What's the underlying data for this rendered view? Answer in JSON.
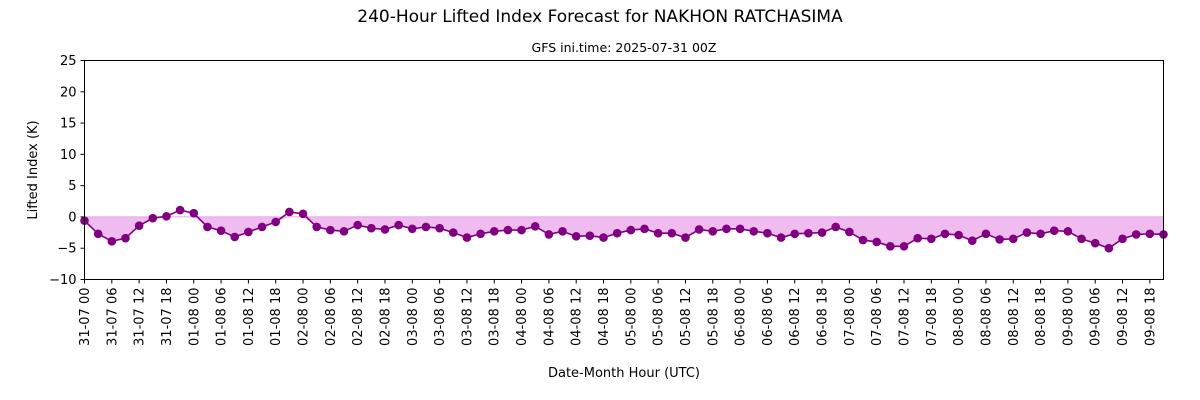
{
  "chart_data": {
    "type": "line",
    "title": "240-Hour Lifted Index Forecast for NAKHON RATCHASIMA",
    "subtitle": "GFS ini.time: 2025-07-31 00Z",
    "xlabel": "Date-Month Hour (UTC)",
    "ylabel": "Lifted Index (K)",
    "ylim": [
      -10,
      25
    ],
    "yticks": [
      -10,
      -5,
      0,
      5,
      10,
      15,
      20,
      25
    ],
    "grid": false,
    "legend": "none",
    "step_hours": 3,
    "x_tick_labels": [
      "31-07 00",
      "31-07 06",
      "31-07 12",
      "31-07 18",
      "01-08 00",
      "01-08 06",
      "01-08 12",
      "01-08 18",
      "02-08 00",
      "02-08 06",
      "02-08 12",
      "02-08 18",
      "03-08 00",
      "03-08 06",
      "03-08 12",
      "03-08 18",
      "04-08 00",
      "04-08 06",
      "04-08 12",
      "04-08 18",
      "05-08 00",
      "05-08 06",
      "05-08 12",
      "05-08 18",
      "06-08 00",
      "06-08 06",
      "06-08 12",
      "06-08 18",
      "07-08 00",
      "07-08 06",
      "07-08 12",
      "07-08 18",
      "08-08 00",
      "08-08 06",
      "08-08 12",
      "08-08 18",
      "09-08 00",
      "09-08 06",
      "09-08 12",
      "09-08 18"
    ],
    "series": [
      {
        "values": [
          -0.6,
          -2.7,
          -3.9,
          -3.4,
          -1.4,
          -0.2,
          0.1,
          1.1,
          0.6,
          -1.6,
          -2.2,
          -3.2,
          -2.4,
          -1.6,
          -0.8,
          0.8,
          0.5,
          -1.6,
          -2.1,
          -2.3,
          -1.3,
          -1.8,
          -2.0,
          -1.3,
          -1.9,
          -1.6,
          -1.8,
          -2.5,
          -3.3,
          -2.7,
          -2.3,
          -2.1,
          -2.1,
          -1.5,
          -2.8,
          -2.3,
          -3.1,
          -3.0,
          -3.3,
          -2.6,
          -2.1,
          -1.9,
          -2.6,
          -2.6,
          -3.3,
          -2.0,
          -2.3,
          -1.9,
          -1.9,
          -2.3,
          -2.6,
          -3.3,
          -2.7,
          -2.6,
          -2.5,
          -1.6,
          -2.4,
          -3.7,
          -4.0,
          -4.7,
          -4.7,
          -3.4,
          -3.5,
          -2.7,
          -2.9,
          -3.8,
          -2.7,
          -3.6,
          -3.5,
          -2.5,
          -2.7,
          -2.2,
          -2.3,
          -3.5,
          -4.2,
          -5.0,
          -3.5,
          -2.8,
          -2.7,
          -2.8
        ]
      }
    ],
    "colors": {
      "line": "#800080",
      "marker": "#800080",
      "fill": "#f0bcf0",
      "zero_line": "#e8a4e8"
    }
  }
}
